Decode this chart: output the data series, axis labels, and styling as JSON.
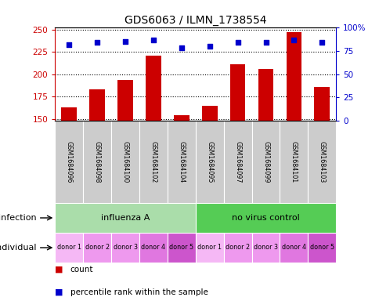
{
  "title": "GDS6063 / ILMN_1738554",
  "samples": [
    "GSM1684096",
    "GSM1684098",
    "GSM1684100",
    "GSM1684102",
    "GSM1684104",
    "GSM1684095",
    "GSM1684097",
    "GSM1684099",
    "GSM1684101",
    "GSM1684103"
  ],
  "counts": [
    163,
    183,
    194,
    221,
    154,
    165,
    211,
    206,
    247,
    186
  ],
  "percentiles": [
    82,
    84,
    85,
    87,
    78,
    80,
    84,
    84,
    87,
    84
  ],
  "ylim_left": [
    148,
    252
  ],
  "ylim_right": [
    0,
    100
  ],
  "yticks_left": [
    150,
    175,
    200,
    225,
    250
  ],
  "yticks_right": [
    0,
    25,
    50,
    75,
    100
  ],
  "bar_color": "#cc0000",
  "dot_color": "#0000cc",
  "infection_groups": [
    {
      "label": "influenza A",
      "start": 0,
      "end": 5,
      "color": "#aaddaa"
    },
    {
      "label": "no virus control",
      "start": 5,
      "end": 10,
      "color": "#55cc55"
    }
  ],
  "individual_labels": [
    "donor 1",
    "donor 2",
    "donor 3",
    "donor 4",
    "donor 5",
    "donor 1",
    "donor 2",
    "donor 3",
    "donor 4",
    "donor 5"
  ],
  "individual_colors": [
    "#f5b8f5",
    "#ee99ee",
    "#ee99ee",
    "#e077e0",
    "#cc55cc",
    "#f5b8f5",
    "#ee99ee",
    "#ee99ee",
    "#e077e0",
    "#cc55cc"
  ],
  "sample_box_color": "#cccccc",
  "label_infection": "infection",
  "label_individual": "individual",
  "legend_count": "count",
  "legend_percentile": "percentile rank within the sample"
}
